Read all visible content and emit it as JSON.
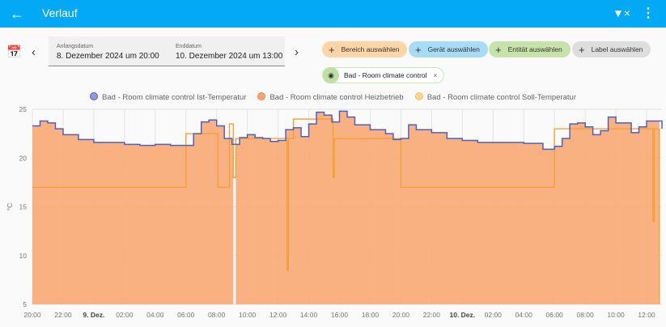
{
  "header": {
    "title": "Verlauf",
    "back_icon": "arrow-left-icon",
    "filter_icon": "filter-remove-icon",
    "menu_icon": "dots-vertical-icon"
  },
  "date_picker": {
    "start_label": "Anfangsdatum",
    "start_value": "8. Dezember 2024 um 20:00",
    "end_label": "Enddatum",
    "end_value": "10. Dezember 2024 um 13:00"
  },
  "targets": {
    "chips": [
      {
        "label": "Bereich auswählen",
        "color": "#fdd5a6"
      },
      {
        "label": "Gerät auswählen",
        "color": "#a6dcf5"
      },
      {
        "label": "Entität auswählen",
        "color": "#c8e3a9"
      },
      {
        "label": "Label auswählen",
        "color": "#dedede"
      }
    ],
    "selected": {
      "label": "Bad - Room climate control"
    }
  },
  "chart_data": {
    "type": "line",
    "ylabel": "°C",
    "ylim": [
      5,
      25
    ],
    "yticks": [
      5,
      10,
      15,
      20,
      25
    ],
    "xlim": [
      "2024-12-08T20:00",
      "2024-12-10T13:00"
    ],
    "xticks": [
      {
        "t": "2024-12-08T20:00",
        "label": "20:00"
      },
      {
        "t": "2024-12-08T22:00",
        "label": "22:00"
      },
      {
        "t": "2024-12-09T00:00",
        "label": "9. Dez.",
        "bold": true
      },
      {
        "t": "2024-12-09T02:00",
        "label": "02:00"
      },
      {
        "t": "2024-12-09T04:00",
        "label": "04:00"
      },
      {
        "t": "2024-12-09T06:00",
        "label": "06:00"
      },
      {
        "t": "2024-12-09T08:00",
        "label": "08:00"
      },
      {
        "t": "2024-12-09T10:00",
        "label": "10:00"
      },
      {
        "t": "2024-12-09T12:00",
        "label": "12:00"
      },
      {
        "t": "2024-12-09T14:00",
        "label": "14:00"
      },
      {
        "t": "2024-12-09T16:00",
        "label": "16:00"
      },
      {
        "t": "2024-12-09T18:00",
        "label": "18:00"
      },
      {
        "t": "2024-12-09T20:00",
        "label": "20:00"
      },
      {
        "t": "2024-12-09T22:00",
        "label": "22:00"
      },
      {
        "t": "2024-12-10T00:00",
        "label": "10. Dez.",
        "bold": true
      },
      {
        "t": "2024-12-10T02:00",
        "label": "02:00"
      },
      {
        "t": "2024-12-10T04:00",
        "label": "04:00"
      },
      {
        "t": "2024-12-10T06:00",
        "label": "06:00"
      },
      {
        "t": "2024-12-10T08:00",
        "label": "08:00"
      },
      {
        "t": "2024-12-10T10:00",
        "label": "10:00"
      },
      {
        "t": "2024-12-10T12:00",
        "label": "12:00"
      }
    ],
    "grid": true,
    "legend": "top",
    "series": [
      {
        "name": "Bad - Room climate control Ist-Temperatur",
        "color": "#4f5fc4",
        "legend_color": "#8c9be0",
        "points": [
          [
            "2024-12-08T20:00",
            23.3
          ],
          [
            "2024-12-08T20:30",
            23.8
          ],
          [
            "2024-12-08T21:00",
            23.6
          ],
          [
            "2024-12-08T21:30",
            23.0
          ],
          [
            "2024-12-08T22:00",
            22.4
          ],
          [
            "2024-12-08T23:00",
            21.9
          ],
          [
            "2024-12-09T00:00",
            21.6
          ],
          [
            "2024-12-09T01:00",
            21.6
          ],
          [
            "2024-12-09T02:00",
            21.4
          ],
          [
            "2024-12-09T03:00",
            21.3
          ],
          [
            "2024-12-09T04:00",
            21.4
          ],
          [
            "2024-12-09T05:00",
            21.3
          ],
          [
            "2024-12-09T06:00",
            21.3
          ],
          [
            "2024-12-09T06:30",
            22.5
          ],
          [
            "2024-12-09T07:00",
            23.7
          ],
          [
            "2024-12-09T07:30",
            23.9
          ],
          [
            "2024-12-09T08:00",
            23.3
          ],
          [
            "2024-12-09T08:30",
            22.0
          ],
          [
            "2024-12-09T09:00",
            21.4
          ],
          [
            "2024-12-09T09:30",
            22.1
          ],
          [
            "2024-12-09T10:00",
            22.4
          ],
          [
            "2024-12-09T10:30",
            22.1
          ],
          [
            "2024-12-09T11:00",
            22.0
          ],
          [
            "2024-12-09T11:30",
            21.7
          ],
          [
            "2024-12-09T12:00",
            21.8
          ],
          [
            "2024-12-09T12:30",
            22.9
          ],
          [
            "2024-12-09T13:00",
            23.1
          ],
          [
            "2024-12-09T13:30",
            22.2
          ],
          [
            "2024-12-09T14:00",
            23.5
          ],
          [
            "2024-12-09T14:30",
            24.7
          ],
          [
            "2024-12-09T15:00",
            24.4
          ],
          [
            "2024-12-09T15:30",
            23.7
          ],
          [
            "2024-12-09T16:00",
            24.8
          ],
          [
            "2024-12-09T16:30",
            24.2
          ],
          [
            "2024-12-09T17:00",
            23.4
          ],
          [
            "2024-12-09T18:00",
            22.9
          ],
          [
            "2024-12-09T19:00",
            22.5
          ],
          [
            "2024-12-09T19:30",
            21.9
          ],
          [
            "2024-12-09T20:00",
            22.0
          ],
          [
            "2024-12-09T20:30",
            23.4
          ],
          [
            "2024-12-09T21:00",
            22.9
          ],
          [
            "2024-12-09T22:00",
            22.6
          ],
          [
            "2024-12-09T23:00",
            22.0
          ],
          [
            "2024-12-10T00:00",
            21.8
          ],
          [
            "2024-12-10T01:00",
            21.6
          ],
          [
            "2024-12-10T02:00",
            21.6
          ],
          [
            "2024-12-10T03:00",
            21.6
          ],
          [
            "2024-12-10T04:00",
            21.5
          ],
          [
            "2024-12-10T05:00",
            21.5
          ],
          [
            "2024-12-10T05:15",
            20.9
          ],
          [
            "2024-12-10T06:00",
            21.2
          ],
          [
            "2024-12-10T06:30",
            22.0
          ],
          [
            "2024-12-10T07:00",
            23.5
          ],
          [
            "2024-12-10T07:30",
            23.6
          ],
          [
            "2024-12-10T08:00",
            23.2
          ],
          [
            "2024-12-10T08:30",
            22.4
          ],
          [
            "2024-12-10T09:00",
            22.8
          ],
          [
            "2024-12-10T09:30",
            24.2
          ],
          [
            "2024-12-10T10:00",
            23.6
          ],
          [
            "2024-12-10T11:00",
            22.6
          ],
          [
            "2024-12-10T11:30",
            23.2
          ],
          [
            "2024-12-10T12:00",
            23.8
          ],
          [
            "2024-12-10T13:00",
            23.0
          ]
        ]
      },
      {
        "name": "Bad - Room climate control Heizbetrieb",
        "color": "#f9a873",
        "legend_color": "#f7a37a",
        "heating_intervals": [
          [
            "2024-12-08T20:00",
            "2024-12-09T09:05"
          ],
          [
            "2024-12-09T09:15",
            "2024-12-10T12:50"
          ]
        ]
      },
      {
        "name": "Bad - Room climate control Soll-Temperatur",
        "color": "#f3c26a",
        "legend_color": "#f7d88e",
        "steps": [
          [
            "2024-12-08T20:00",
            17
          ],
          [
            "2024-12-09T06:00",
            22.5
          ],
          [
            "2024-12-09T08:05",
            17
          ],
          [
            "2024-12-09T08:50",
            23.5
          ],
          [
            "2024-12-09T09:05",
            18
          ],
          [
            "2024-12-09T09:15",
            22
          ],
          [
            "2024-12-09T12:00",
            22
          ],
          [
            "2024-12-09T12:35",
            8.5
          ],
          [
            "2024-12-09T12:40",
            22
          ],
          [
            "2024-12-09T13:00",
            24
          ],
          [
            "2024-12-09T15:35",
            18
          ],
          [
            "2024-12-09T15:40",
            22
          ],
          [
            "2024-12-09T20:00",
            17
          ],
          [
            "2024-12-10T06:00",
            23
          ],
          [
            "2024-12-10T12:25",
            13.5
          ],
          [
            "2024-12-10T12:30",
            23
          ],
          [
            "2024-12-10T12:50",
            5
          ]
        ]
      }
    ]
  }
}
